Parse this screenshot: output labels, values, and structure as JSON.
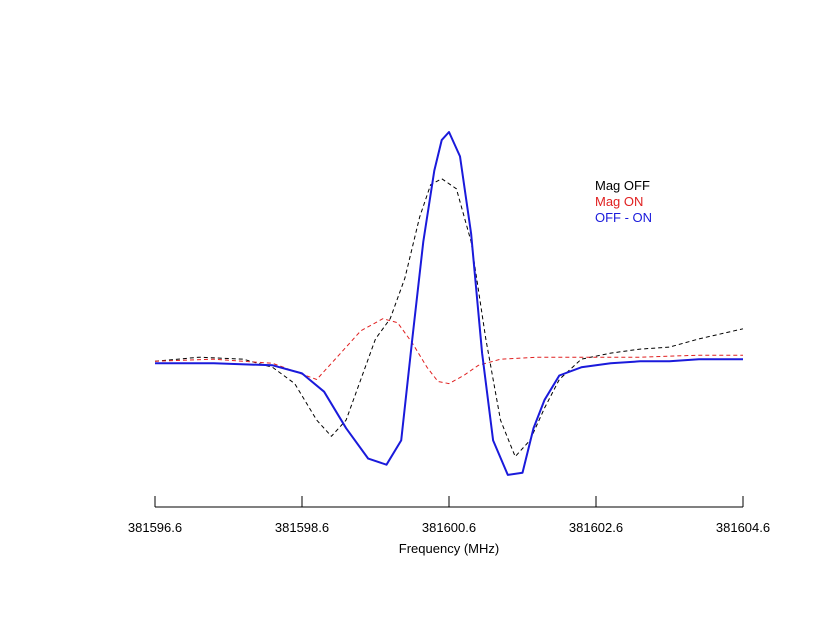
{
  "chart_data": {
    "type": "line",
    "title": "",
    "xlabel": "Frequency (MHz)",
    "ylabel": "",
    "xlim": [
      381596.6,
      381604.6
    ],
    "ylim": [
      -0.6,
      1.15
    ],
    "xticks": [
      381596.6,
      381598.6,
      381600.6,
      381602.6,
      381604.6
    ],
    "xtick_labels": [
      "381596.6",
      "381598.6",
      "381600.6",
      "381602.6",
      "381604.6"
    ],
    "grid": false,
    "legend_position": "top-right",
    "series": [
      {
        "name": "Mag OFF",
        "color": "#000000",
        "style": "dashed",
        "x": [
          381596.6,
          381597.2,
          381597.8,
          381598.2,
          381598.5,
          381598.8,
          381599.0,
          381599.2,
          381599.4,
          381599.6,
          381599.8,
          381600.0,
          381600.2,
          381600.35,
          381600.5,
          381600.7,
          381600.9,
          381601.1,
          381601.3,
          381601.5,
          381601.7,
          381601.9,
          381602.1,
          381602.4,
          381602.8,
          381603.2,
          381603.6,
          381604.0,
          381604.6
        ],
        "y": [
          0.01,
          0.03,
          0.02,
          -0.02,
          -0.1,
          -0.28,
          -0.36,
          -0.28,
          -0.08,
          0.12,
          0.22,
          0.42,
          0.72,
          0.88,
          0.91,
          0.86,
          0.6,
          0.12,
          -0.28,
          -0.46,
          -0.38,
          -0.22,
          -0.08,
          0.02,
          0.05,
          0.07,
          0.08,
          0.12,
          0.17
        ]
      },
      {
        "name": "Mag ON",
        "color": "#e02020",
        "style": "dashed",
        "x": [
          381596.6,
          381597.4,
          381598.2,
          381598.8,
          381599.1,
          381599.4,
          381599.7,
          381599.9,
          381600.1,
          381600.3,
          381600.45,
          381600.6,
          381600.8,
          381601.0,
          381601.3,
          381601.8,
          381602.4,
          381603.2,
          381604.0,
          381604.6
        ],
        "y": [
          0.01,
          0.02,
          0.0,
          -0.08,
          0.04,
          0.16,
          0.22,
          0.2,
          0.1,
          -0.02,
          -0.09,
          -0.1,
          -0.06,
          -0.01,
          0.02,
          0.03,
          0.03,
          0.03,
          0.04,
          0.04
        ]
      },
      {
        "name": "OFF - ON",
        "color": "#1a1adb",
        "style": "solid",
        "x": [
          381596.6,
          381597.4,
          381598.2,
          381598.6,
          381598.9,
          381599.2,
          381599.5,
          381599.75,
          381599.95,
          381600.1,
          381600.25,
          381600.4,
          381600.5,
          381600.6,
          381600.75,
          381600.9,
          381601.05,
          381601.2,
          381601.4,
          381601.6,
          381601.75,
          381601.9,
          381602.1,
          381602.4,
          381602.8,
          381603.2,
          381603.6,
          381604.0,
          381604.6
        ],
        "y": [
          0.0,
          0.0,
          -0.01,
          -0.05,
          -0.14,
          -0.32,
          -0.47,
          -0.5,
          -0.38,
          0.12,
          0.6,
          0.95,
          1.1,
          1.14,
          1.02,
          0.64,
          0.05,
          -0.38,
          -0.55,
          -0.54,
          -0.32,
          -0.18,
          -0.06,
          -0.02,
          0.0,
          0.01,
          0.01,
          0.02,
          0.02
        ]
      }
    ]
  }
}
